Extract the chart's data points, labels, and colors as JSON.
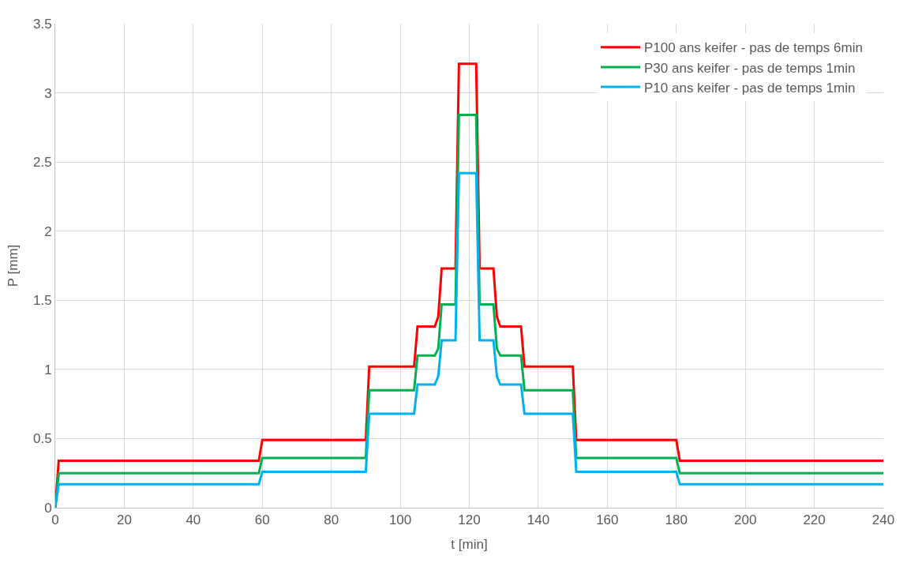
{
  "chart_data": {
    "type": "line",
    "xlabel": "t [min]",
    "ylabel": "P [mm]",
    "x": [
      0,
      1,
      59,
      60,
      90,
      91,
      104,
      105,
      110,
      111,
      112,
      116,
      117,
      122,
      123,
      127,
      128,
      129,
      135,
      136,
      150,
      151,
      180,
      181,
      240
    ],
    "series": [
      {
        "name": "P100 ans keifer - pas de temps 6min",
        "color": "#ff0000",
        "values": [
          0,
          0.34,
          0.34,
          0.49,
          0.49,
          1.02,
          1.02,
          1.31,
          1.31,
          1.38,
          1.73,
          1.73,
          3.21,
          3.21,
          1.73,
          1.73,
          1.38,
          1.31,
          1.31,
          1.02,
          1.02,
          0.49,
          0.49,
          0.34,
          0.34
        ]
      },
      {
        "name": "P30 ans keifer - pas de temps 1min",
        "color": "#00b050",
        "values": [
          0,
          0.25,
          0.25,
          0.36,
          0.36,
          0.85,
          0.85,
          1.1,
          1.1,
          1.15,
          1.47,
          1.47,
          2.84,
          2.84,
          1.47,
          1.47,
          1.15,
          1.1,
          1.1,
          0.85,
          0.85,
          0.36,
          0.36,
          0.25,
          0.25
        ]
      },
      {
        "name": "P10 ans keifer - pas de temps 1min",
        "color": "#00b0f0",
        "values": [
          0,
          0.17,
          0.17,
          0.26,
          0.26,
          0.68,
          0.68,
          0.89,
          0.89,
          0.95,
          1.21,
          1.21,
          2.42,
          2.42,
          1.21,
          1.21,
          0.95,
          0.89,
          0.89,
          0.68,
          0.68,
          0.26,
          0.26,
          0.17,
          0.17
        ]
      }
    ],
    "xlim": [
      0,
      240
    ],
    "xticks": [
      0,
      20,
      40,
      60,
      80,
      100,
      120,
      140,
      160,
      180,
      200,
      220,
      240
    ],
    "ylim": [
      0,
      3.5
    ],
    "yticks": [
      0,
      0.5,
      1,
      1.5,
      2,
      2.5,
      3,
      3.5
    ],
    "grid": true,
    "legend": "top right",
    "marker": "none",
    "line_style": "solid"
  }
}
